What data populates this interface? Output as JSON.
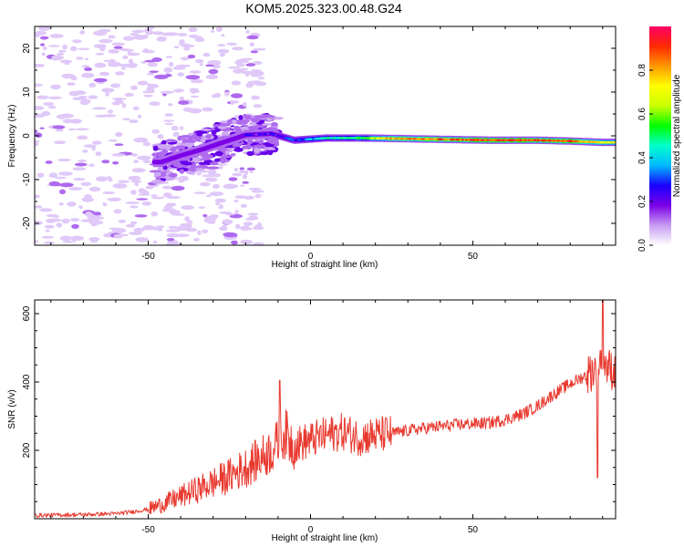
{
  "title": "KOM5.2025.323.00.48.G24",
  "colors": {
    "snr_line": "#e8392f",
    "axis": "#000000",
    "background": "#ffffff"
  },
  "chart_data": [
    {
      "type": "heatmap",
      "name": "spectrogram",
      "xlabel": "Height of straight line (km)",
      "ylabel": "Frequency (Hz)",
      "xlim": [
        -85,
        94
      ],
      "ylim": [
        -25,
        25
      ],
      "xticks": [
        -50,
        0,
        50
      ],
      "yticks": [
        -20,
        -10,
        0,
        10,
        20
      ],
      "colorbar": {
        "label": "Normalized spectral amplitude",
        "range": [
          0.0,
          1.0
        ],
        "ticks": [
          "0.0",
          "0.2",
          "0.4",
          "0.6",
          "0.8"
        ],
        "colormap": [
          "#ffffff",
          "#c79cf2",
          "#7a00e6",
          "#1a00ff",
          "#00b8ff",
          "#00ffcc",
          "#00ff00",
          "#c8ff00",
          "#ffff00",
          "#ff9900",
          "#ff2a00",
          "#ff0066"
        ]
      },
      "ridge": [
        {
          "x": -46,
          "y": -6,
          "amp": 0.18
        },
        {
          "x": -40,
          "y": -4.5,
          "amp": 0.18
        },
        {
          "x": -33,
          "y": -3,
          "amp": 0.18
        },
        {
          "x": -27,
          "y": -1.5,
          "amp": 0.18
        },
        {
          "x": -20,
          "y": 0.2,
          "amp": 0.2
        },
        {
          "x": -12,
          "y": 0.5,
          "amp": 0.22
        },
        {
          "x": -5,
          "y": -1,
          "amp": 0.3
        },
        {
          "x": 5,
          "y": -0.5,
          "amp": 0.45
        },
        {
          "x": 15,
          "y": -0.5,
          "amp": 0.5
        },
        {
          "x": 25,
          "y": -0.6,
          "amp": 0.8
        },
        {
          "x": 40,
          "y": -0.8,
          "amp": 0.85
        },
        {
          "x": 55,
          "y": -1,
          "amp": 0.9
        },
        {
          "x": 70,
          "y": -1,
          "amp": 0.88
        },
        {
          "x": 80,
          "y": -1.2,
          "amp": 0.9
        },
        {
          "x": 90,
          "y": -1.5,
          "amp": 0.7
        }
      ]
    },
    {
      "type": "line",
      "name": "snr",
      "xlabel": "Height of straight line (km)",
      "ylabel": "SNR (v/v)",
      "xlim": [
        -85,
        94
      ],
      "ylim": [
        0,
        640
      ],
      "xticks": [
        -50,
        0,
        50
      ],
      "yticks": [
        200,
        400,
        600
      ],
      "series": [
        {
          "name": "SNR",
          "x": [
            -85,
            -70,
            -60,
            -55,
            -50,
            -45,
            -40,
            -35,
            -30,
            -25,
            -20,
            -15,
            -12,
            -10,
            -8,
            -5,
            0,
            5,
            10,
            15,
            20,
            25,
            30,
            35,
            40,
            45,
            50,
            55,
            60,
            65,
            70,
            75,
            80,
            85,
            87,
            88,
            89,
            90,
            91,
            92,
            94
          ],
          "y": [
            10,
            12,
            15,
            20,
            28,
            45,
            65,
            85,
            105,
            125,
            150,
            180,
            200,
            220,
            250,
            215,
            230,
            245,
            255,
            238,
            245,
            250,
            258,
            265,
            270,
            275,
            278,
            280,
            290,
            305,
            330,
            365,
            395,
            420,
            435,
            440,
            460,
            480,
            450,
            440,
            430
          ]
        }
      ],
      "spikes": [
        {
          "x": -9.5,
          "y": 405
        },
        {
          "x": 88.5,
          "y": 120
        },
        {
          "x": 90,
          "y": 640
        }
      ]
    }
  ]
}
